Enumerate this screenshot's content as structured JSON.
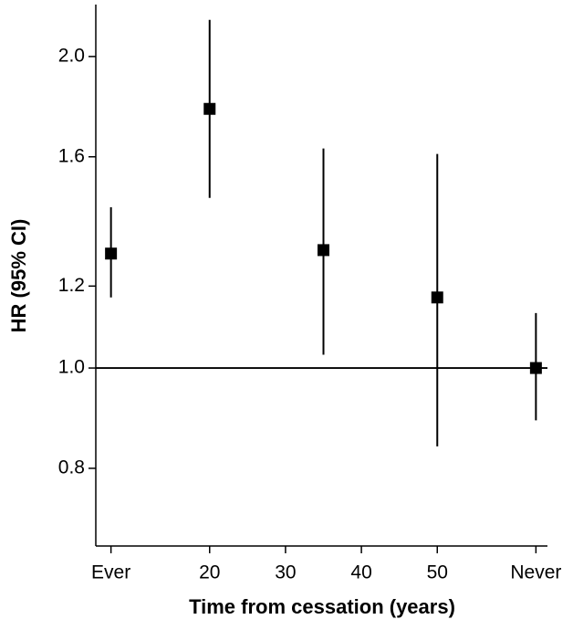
{
  "chart_data": {
    "type": "errorbar",
    "x_label": "Time from cessation (years)",
    "y_label": "HR (95% CI)",
    "x": [
      7,
      20,
      35,
      50,
      63
    ],
    "values": [
      1.29,
      1.78,
      1.3,
      1.17,
      1.0
    ],
    "lower": [
      1.17,
      1.46,
      1.03,
      0.84,
      0.89
    ],
    "upper": [
      1.43,
      2.17,
      1.63,
      1.61,
      1.13
    ],
    "color": "#000000",
    "reference_line": {
      "value": 1,
      "label": "1.0"
    },
    "xlim": [
      5,
      65
    ],
    "xticks": [
      {
        "value": 7,
        "label": "Ever"
      },
      20,
      30,
      40,
      50,
      {
        "value": 63,
        "label": "Never"
      }
    ],
    "ylim": [
      0.673,
      2.245
    ],
    "yticks": [
      0.8,
      {
        "value": 1,
        "label": "1.0"
      },
      1.2,
      1.6,
      {
        "value": 2,
        "label": "2.0"
      }
    ],
    "y_scale": "log"
  }
}
